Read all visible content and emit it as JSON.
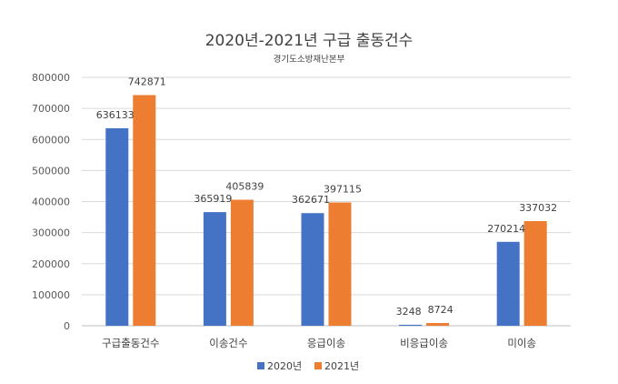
{
  "chart_data": {
    "type": "bar",
    "title": "2020년-2021년 구급 출동건수",
    "subtitle": "경기도소방재난본부",
    "categories": [
      "구급출동건수",
      "이송건수",
      "응급이송",
      "비응급이송",
      "미이송"
    ],
    "series": [
      {
        "name": "2020년",
        "color": "#4472C4",
        "values": [
          636133,
          365919,
          362671,
          3248,
          270214
        ]
      },
      {
        "name": "2021년",
        "color": "#ED7D31",
        "values": [
          742871,
          405839,
          397115,
          8724,
          337032
        ]
      }
    ],
    "y_ticks": [
      "0",
      "100000",
      "200000",
      "300000",
      "400000",
      "500000",
      "600000",
      "700000",
      "800000"
    ],
    "ylim": [
      0,
      800000
    ],
    "grid": true,
    "legend_position": "bottom"
  }
}
